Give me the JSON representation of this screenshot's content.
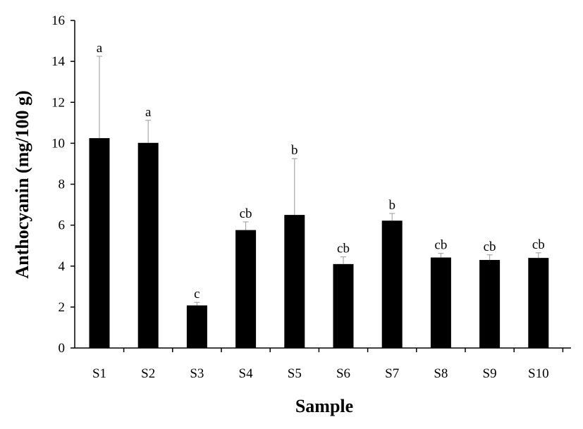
{
  "chart_data": {
    "type": "bar",
    "categories": [
      "S1",
      "S2",
      "S3",
      "S4",
      "S5",
      "S6",
      "S7",
      "S8",
      "S9",
      "S10"
    ],
    "values": [
      10.25,
      10.02,
      2.08,
      5.76,
      6.5,
      4.1,
      6.22,
      4.42,
      4.3,
      4.4
    ],
    "errors": [
      4.0,
      1.1,
      0.15,
      0.4,
      2.75,
      0.35,
      0.35,
      0.2,
      0.25,
      0.25
    ],
    "significance": [
      "a",
      "a",
      "c",
      "cb",
      "b",
      "cb",
      "b",
      "cb",
      "cb",
      "cb"
    ],
    "xlabel": "Sample",
    "ylabel": "Anthocyanin (mg/100 g)",
    "ylim": [
      0,
      16
    ],
    "yticks": [
      "0",
      "2",
      "4",
      "6",
      "8",
      "10",
      "12",
      "14",
      "16"
    ],
    "grid": false,
    "bar_color": "#000000",
    "error_bar_color": "#999999"
  }
}
